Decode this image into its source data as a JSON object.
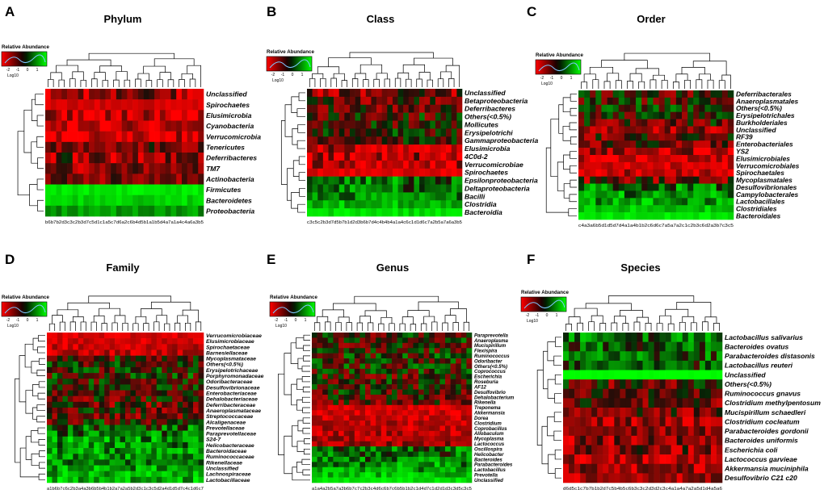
{
  "figure": {
    "colorkey_label": "Relative Abundance",
    "colorkey_axis": "Log10",
    "colorkey_ticks": [
      "-2",
      "-1",
      "0",
      "1"
    ]
  },
  "chart_data": [
    {
      "type": "heatmap",
      "panel": "A",
      "title": "Phylum",
      "rows": [
        "Unclassified",
        "Spirochaetes",
        "Elusimicrobia",
        "Cyanobacteria",
        "Verrucomicrobia",
        "Tenericutes",
        "Deferribacteres",
        "TM7",
        "Actinobacteria",
        "Firmicutes",
        "Bacteroidetes",
        "Proteobacteria"
      ],
      "columns": [
        "b6",
        "b7",
        "b2",
        "d3",
        "c3",
        "c2",
        "b3",
        "d7",
        "c5",
        "d1",
        "c1",
        "a5",
        "c7",
        "d6",
        "a2",
        "c6",
        "b4",
        "d5",
        "b1",
        "a1",
        "b5",
        "d4",
        "a7",
        "a1",
        "a4",
        "c4",
        "a6",
        "a3",
        "b5"
      ],
      "row_levels": [
        0.5,
        0.8,
        0.75,
        0.7,
        0.8,
        0.35,
        0.5,
        0.5,
        0.4,
        -0.9,
        -0.8,
        -0.55
      ],
      "row_variability": [
        0.55,
        0.15,
        0.5,
        0.45,
        0.5,
        0.45,
        0.6,
        0.45,
        0.4,
        0.1,
        0.15,
        0.2
      ],
      "scale": "Log10 relative abundance"
    },
    {
      "type": "heatmap",
      "panel": "B",
      "title": "Class",
      "rows": [
        "Unclassified",
        "Betaproteobacteria",
        "Deferribacteres",
        "Others(<0.5%)",
        "Mollicutes",
        "Erysipelotrichi",
        "Gammaproteobacteria",
        "Elusimicrobia",
        "4C0d-2",
        "Verrucomicrobiae",
        "Spirochaetes",
        "Epsilonproteobacteria",
        "Deltaproteobacteria",
        "Bacilli",
        "Clostridia",
        "Bacteroidia"
      ],
      "columns": [
        "c3",
        "c5",
        "c2",
        "b3",
        "d7",
        "d5",
        "b7",
        "b1",
        "d2",
        "d3",
        "b6",
        "b7",
        "d4",
        "c4",
        "b4",
        "b4",
        "a1",
        "a4",
        "c6",
        "c1",
        "d1",
        "d6",
        "c7",
        "a2",
        "b5",
        "a7",
        "a6",
        "a3",
        "b5"
      ],
      "row_levels": [
        0.45,
        0.3,
        0.35,
        0.1,
        0.1,
        0.05,
        0.1,
        0.6,
        0.6,
        0.7,
        0.85,
        -0.4,
        -0.35,
        -0.45,
        -0.7,
        -0.85
      ],
      "row_variability": [
        0.5,
        0.55,
        0.5,
        0.55,
        0.55,
        0.5,
        0.45,
        0.6,
        0.55,
        0.5,
        0.15,
        0.45,
        0.45,
        0.4,
        0.25,
        0.15
      ],
      "scale": "Log10 relative abundance"
    },
    {
      "type": "heatmap",
      "panel": "C",
      "title": "Order",
      "rows": [
        "Deferribacterales",
        "Anaeroplasmatales",
        "Others(<0.5%)",
        "Erysipelotrichales",
        "Burkholderiales",
        "Unclassified",
        "RF39",
        "Enterobacteriales",
        "YS2",
        "Elusimicrobiales",
        "Verrucomicrobiales",
        "Spirochaetales",
        "Mycoplasmatales",
        "Desulfovibrionales",
        "Campylobacterales",
        "Lactobacillales",
        "Clostridiales",
        "Bacteroidales"
      ],
      "columns": [
        "c4",
        "a3",
        "a6",
        "b5",
        "d1",
        "d5",
        "d7",
        "d4",
        "a1",
        "a4",
        "b1",
        "b2",
        "c6",
        "d6",
        "c7",
        "a5",
        "a7",
        "a2",
        "c1",
        "c2",
        "b3",
        "c6",
        "d2",
        "a3",
        "b7",
        "c3",
        "c5"
      ],
      "row_levels": [
        0.15,
        0.05,
        0.0,
        0.1,
        0.2,
        0.55,
        0.3,
        0.35,
        0.6,
        0.75,
        0.8,
        0.7,
        0.35,
        -0.4,
        -0.45,
        -0.55,
        -0.75,
        -0.9
      ],
      "row_variability": [
        0.55,
        0.55,
        0.5,
        0.55,
        0.55,
        0.45,
        0.55,
        0.5,
        0.45,
        0.35,
        0.3,
        0.4,
        0.55,
        0.45,
        0.45,
        0.4,
        0.2,
        0.1
      ],
      "scale": "Log10 relative abundance"
    },
    {
      "type": "heatmap",
      "panel": "D",
      "title": "Family",
      "rows": [
        "Verrucomicrobiaceae",
        "Elusimicrobiaceae",
        "Spirochaetaceae",
        "Barnesiellaceae",
        "Mycoplasmataceae",
        "Others(<0.5%)",
        "Erysipelotrichaceae",
        "Porphyromonadaceae",
        "Odoribacteraceae",
        "Desulfovibrionaceae",
        "Enterobacteriaceae",
        "Dehalobacteriaceae",
        "Deferribacteraceae",
        "Anaeroplasmataceae",
        "Streptococcaceae",
        "Alcaligenaceae",
        "Prevotellaceae",
        "Paraprevotellaceae",
        "S24-7",
        "Helicobacteraceae",
        "Bacteroidaceae",
        "Ruminococcaceae",
        "Rikenellaceae",
        "Unclassified",
        "Lachnospiraceae",
        "Lactobacillaceae"
      ],
      "columns": [
        "a1",
        "b6",
        "b7",
        "c6",
        "c2",
        "b3",
        "a4",
        "a3",
        "b6",
        "b5",
        "b4",
        "b1",
        "b2",
        "a7",
        "a2",
        "a5",
        "b2",
        "d3",
        "c1",
        "c3",
        "c5",
        "d2",
        "a4",
        "d1",
        "d5",
        "d7",
        "c4",
        "c1",
        "d6",
        "c7"
      ],
      "row_levels": [
        0.85,
        0.8,
        0.75,
        0.7,
        0.15,
        0.05,
        0.05,
        0.0,
        0.1,
        0.05,
        0.15,
        0.2,
        0.25,
        0.2,
        0.3,
        0.1,
        -0.3,
        -0.4,
        -0.5,
        -0.45,
        -0.5,
        -0.5,
        -0.45,
        -0.55,
        -0.6,
        -0.65
      ],
      "row_variability": [
        0.2,
        0.25,
        0.3,
        0.3,
        0.55,
        0.55,
        0.55,
        0.55,
        0.55,
        0.5,
        0.5,
        0.55,
        0.55,
        0.55,
        0.5,
        0.55,
        0.5,
        0.45,
        0.45,
        0.45,
        0.4,
        0.4,
        0.4,
        0.4,
        0.35,
        0.4
      ],
      "scale": "Log10 relative abundance"
    },
    {
      "type": "heatmap",
      "panel": "E",
      "title": "Genus",
      "rows": [
        "Paraprevotella",
        "Anaeroplasma",
        "Mucispirillum",
        "Flexispira",
        "Ruminococcus",
        "Odoribacter",
        "Others(<0.5%)",
        "Coprococcus",
        "Escherichia",
        "Roseburia",
        "AF12",
        "Desulfovibrio",
        "Dehalobacterium",
        "Rikenella",
        "Treponema",
        "Akkermansia",
        "Dorea",
        "Clostridium",
        "Coprobacillus",
        "Allobaculum",
        "Mycoplasma",
        "Lactococcus",
        "Oscillospira",
        "Helicobacter",
        "Bacteroides",
        "Parabacteroides",
        "Lactobacillus",
        "Prevotella",
        "Unclassified"
      ],
      "columns": [
        "a1",
        "a4",
        "a2",
        "b5",
        "a7",
        "a3",
        "b6",
        "b7",
        "c7",
        "c2",
        "b3",
        "c4",
        "d6",
        "c6",
        "b7",
        "c6",
        "b5",
        "b1",
        "b2",
        "c1",
        "d4",
        "d7",
        "c1",
        "d2",
        "d1",
        "d3",
        "c3",
        "d5",
        "c3",
        "c5"
      ],
      "row_levels": [
        0.1,
        0.05,
        0.1,
        0.05,
        0.0,
        0.05,
        0.0,
        0.05,
        0.15,
        0.1,
        0.15,
        0.1,
        0.15,
        0.3,
        0.8,
        0.8,
        0.75,
        0.7,
        0.65,
        0.65,
        0.6,
        0.55,
        -0.35,
        -0.3,
        -0.4,
        -0.45,
        -0.5,
        -0.7,
        -0.85
      ],
      "row_variability": [
        0.55,
        0.55,
        0.55,
        0.55,
        0.55,
        0.55,
        0.55,
        0.55,
        0.55,
        0.55,
        0.55,
        0.55,
        0.55,
        0.5,
        0.25,
        0.25,
        0.3,
        0.3,
        0.35,
        0.35,
        0.35,
        0.4,
        0.45,
        0.45,
        0.45,
        0.45,
        0.4,
        0.3,
        0.15
      ],
      "scale": "Log10 relative abundance"
    },
    {
      "type": "heatmap",
      "panel": "F",
      "title": "Species",
      "rows": [
        "Lactobacillus salivarius",
        "Bacteroides ovatus",
        "Parabacteroides distasonis",
        "Lactobacillus reuteri",
        "Unclassified",
        "Others(<0.5%)",
        "Ruminococcus gnavus",
        "Clostridium methylpentosum",
        "Mucispirillum schaedleri",
        "Clostridium cocleatum",
        "Parabacteroides gordonii",
        "Bacteroides uniformis",
        "Escherichia coli",
        "Lactococcus garvieae",
        "Akkermansia muciniphila",
        "Desulfovibrio C21 c20"
      ],
      "columns": [
        "d6",
        "d5",
        "c1",
        "c7",
        "b7",
        "b1",
        "b2",
        "d7",
        "c5",
        "b4",
        "b5",
        "c6",
        "b3",
        "c3",
        "c2",
        "d3",
        "d2",
        "c3",
        "c4",
        "a1",
        "a4",
        "a7",
        "a2",
        "a5",
        "d1",
        "d4",
        "a5",
        "a6"
      ],
      "row_levels": [
        -0.35,
        -0.25,
        -0.3,
        -0.2,
        -1.0,
        0.2,
        0.25,
        0.3,
        0.35,
        0.55,
        0.55,
        0.5,
        0.45,
        0.6,
        0.55,
        0.6
      ],
      "row_variability": [
        0.45,
        0.45,
        0.45,
        0.45,
        0.05,
        0.55,
        0.5,
        0.5,
        0.5,
        0.45,
        0.45,
        0.5,
        0.5,
        0.45,
        0.45,
        0.4
      ],
      "scale": "Log10 relative abundance"
    }
  ]
}
